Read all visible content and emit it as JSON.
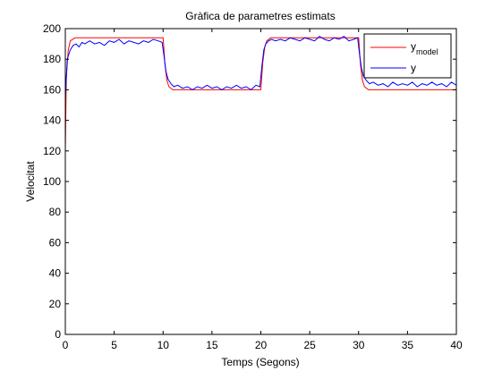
{
  "chart_data": {
    "type": "line",
    "title": "Gràfica de parametres estimats",
    "xlabel": "Temps (Segons)",
    "ylabel": "Velocitat",
    "xlim": [
      0,
      40
    ],
    "ylim": [
      0,
      200
    ],
    "xticks": [
      0,
      5,
      10,
      15,
      20,
      25,
      30,
      35,
      40
    ],
    "yticks": [
      0,
      20,
      40,
      60,
      80,
      100,
      120,
      140,
      160,
      180,
      200
    ],
    "grid": false,
    "legend_position": "top-right",
    "series": [
      {
        "name": "y",
        "name_subscript": "model",
        "color": "#ff0000",
        "x": [
          0,
          0.1,
          0.3,
          0.5,
          1,
          2,
          5,
          9.9,
          10,
          10.2,
          10.4,
          10.6,
          11,
          12,
          15,
          19.9,
          20,
          20.2,
          20.4,
          20.6,
          21,
          22,
          25,
          29.9,
          30,
          30.2,
          30.4,
          30.6,
          31,
          32,
          35,
          40
        ],
        "y": [
          120,
          168,
          186,
          192,
          194,
          194,
          194,
          194,
          194,
          176,
          166,
          162,
          160,
          160,
          160,
          160,
          160,
          178,
          188,
          192,
          194,
          194,
          194,
          194,
          194,
          176,
          166,
          162,
          160,
          160,
          160,
          160
        ]
      },
      {
        "name": "y",
        "color": "#0000ff",
        "x": [
          0,
          0.2,
          0.5,
          0.8,
          1.1,
          1.4,
          1.7,
          2.0,
          2.5,
          3.0,
          3.5,
          4.0,
          4.5,
          5.0,
          5.5,
          6.0,
          6.5,
          7.0,
          7.5,
          8.0,
          8.5,
          9.0,
          9.5,
          9.9,
          10.1,
          10.3,
          10.5,
          10.8,
          11.1,
          11.5,
          12.0,
          12.5,
          13.0,
          13.5,
          14.0,
          14.5,
          15.0,
          15.5,
          16.0,
          16.5,
          17.0,
          17.5,
          18.0,
          18.5,
          19.0,
          19.5,
          19.9,
          20.1,
          20.3,
          20.5,
          20.8,
          21.1,
          21.5,
          22.0,
          22.5,
          23.0,
          23.5,
          24.0,
          24.5,
          25.0,
          25.5,
          26.0,
          26.5,
          27.0,
          27.5,
          28.0,
          28.5,
          29.0,
          29.5,
          29.9,
          30.1,
          30.3,
          30.5,
          30.8,
          31.1,
          31.5,
          32.0,
          32.5,
          33.0,
          33.5,
          34.0,
          34.5,
          35.0,
          35.5,
          36.0,
          36.5,
          37.0,
          37.5,
          38.0,
          38.5,
          39.0,
          39.5,
          40.0
        ],
        "y": [
          155,
          180,
          186,
          189,
          190,
          188,
          191,
          190,
          192,
          190,
          191,
          189,
          192,
          191,
          193,
          190,
          192,
          191,
          190,
          192,
          191,
          193,
          192,
          191,
          182,
          172,
          167,
          164,
          162,
          163,
          161,
          162,
          160,
          162,
          161,
          163,
          161,
          162,
          160,
          162,
          161,
          163,
          161,
          162,
          160,
          163,
          162,
          175,
          186,
          190,
          192,
          193,
          192,
          193,
          192,
          194,
          193,
          192,
          194,
          193,
          192,
          195,
          193,
          192,
          194,
          193,
          195,
          192,
          193,
          194,
          183,
          174,
          169,
          166,
          164,
          165,
          163,
          164,
          162,
          165,
          163,
          164,
          163,
          165,
          162,
          164,
          163,
          165,
          163,
          164,
          162,
          165,
          163
        ]
      }
    ]
  }
}
